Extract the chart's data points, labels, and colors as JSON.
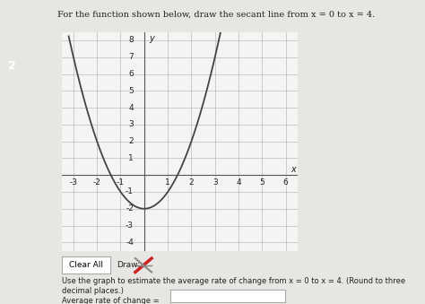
{
  "title": "For the function shown below, draw the secant line from x = 0 to x = 4.",
  "xlabel": "x",
  "ylabel": "y",
  "xlim": [
    -3.5,
    6.5
  ],
  "ylim": [
    -4.5,
    8.5
  ],
  "xticks": [
    -3,
    -2,
    -1,
    1,
    2,
    3,
    4,
    5,
    6
  ],
  "yticks": [
    -4,
    -3,
    -2,
    -1,
    1,
    2,
    3,
    4,
    5,
    6,
    7,
    8
  ],
  "curve_color": "#444444",
  "grid_color": "#bbbbbb",
  "background_color": "#e8e6e3",
  "plot_bg": "#f5f4f2",
  "label_color": "#222222",
  "button_text1": "Clear All",
  "button_text2": "Draw:",
  "bottom_text": "Use the graph to estimate the average rate of change from x = 0 to x = 4. (Round to three decimal places.)",
  "avg_rate_label": "Average rate of change =",
  "badge_text": "2",
  "badge_color": "#1a6bbf",
  "badge_text_color": "#ffffff"
}
